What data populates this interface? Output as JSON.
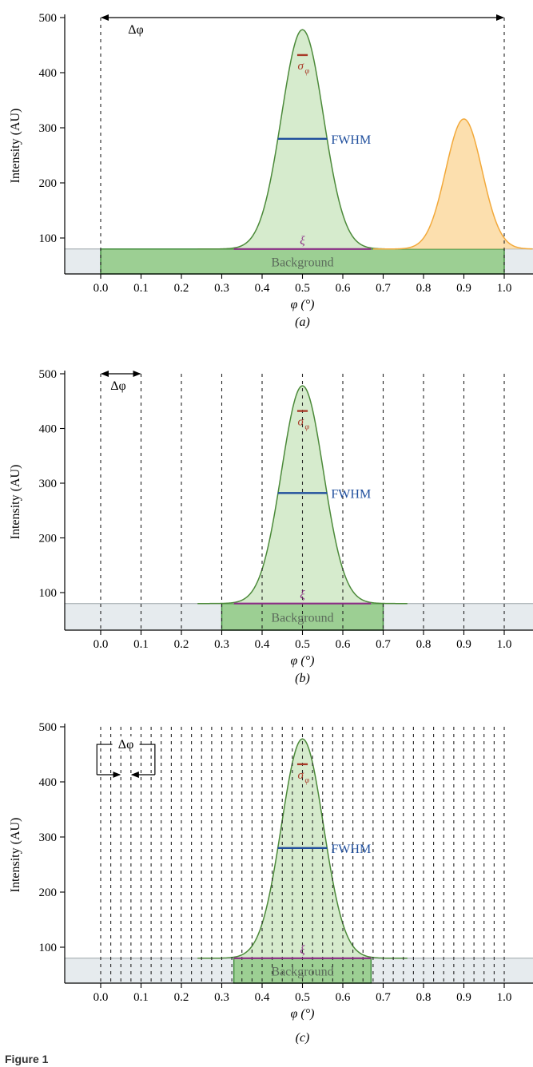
{
  "figure_label": "Figure 1",
  "chart_data": [
    {
      "type": "area",
      "panel_label": "(a)",
      "xlabel": "φ (°)",
      "ylabel": "Intensity (AU)",
      "xlim": [
        -0.08,
        1.07
      ],
      "ylim": [
        0,
        500
      ],
      "x_ticks": [
        "0.0",
        "0.1",
        "0.2",
        "0.3",
        "0.4",
        "0.5",
        "0.6",
        "0.7",
        "0.8",
        "0.9",
        "1.0"
      ],
      "y_ticks": [
        "100",
        "200",
        "300",
        "400",
        "500"
      ],
      "background_level": 80,
      "series": [
        {
          "center": 0.5,
          "peak": 478,
          "sigma": 0.052,
          "color": "#cfe7c4",
          "stroke": "#4c8a3a"
        },
        {
          "center": 0.9,
          "peak": 316,
          "sigma": 0.045,
          "color": "#fcd9a0",
          "stroke": "#f2a93b"
        }
      ],
      "background_box": [
        0.0,
        1.0
      ],
      "background_text": "Background",
      "oscillation_lines": [
        0.0,
        1.0
      ],
      "delta_range": [
        0.0,
        1.0
      ],
      "delta_label": "Δφ",
      "annotations": {
        "sigma": "σ",
        "sigma_sub": "φ",
        "fwhm": "FWHM",
        "xi": "ξ",
        "sigma_y": 432,
        "fwhm_y": 280,
        "xi_range": [
          0.33,
          0.67
        ]
      }
    },
    {
      "type": "area",
      "panel_label": "(b)",
      "xlabel": "φ (°)",
      "ylabel": "Intensity (AU)",
      "xlim": [
        -0.08,
        1.07
      ],
      "ylim": [
        0,
        500
      ],
      "x_ticks": [
        "0.0",
        "0.1",
        "0.2",
        "0.3",
        "0.4",
        "0.5",
        "0.6",
        "0.7",
        "0.8",
        "0.9",
        "1.0"
      ],
      "y_ticks": [
        "100",
        "200",
        "300",
        "400",
        "500"
      ],
      "background_level": 80,
      "series": [
        {
          "center": 0.5,
          "peak": 478,
          "sigma": 0.052,
          "color": "#cfe7c4",
          "stroke": "#4c8a3a"
        }
      ],
      "background_box": [
        0.3,
        0.7
      ],
      "background_text": "Background",
      "oscillation_lines": [
        0.0,
        0.1,
        0.2,
        0.3,
        0.4,
        0.5,
        0.6,
        0.7,
        0.8,
        0.9,
        1.0
      ],
      "delta_range": [
        0.0,
        0.1
      ],
      "delta_label": "Δφ",
      "annotations": {
        "sigma": "σ",
        "sigma_sub": "φ",
        "fwhm": "FWHM",
        "xi": "ξ",
        "sigma_y": 432,
        "fwhm_y": 282,
        "xi_range": [
          0.33,
          0.67
        ]
      }
    },
    {
      "type": "area",
      "panel_label": "(c)",
      "xlabel": "φ (°)",
      "ylabel": "Intensity (AU)",
      "xlim": [
        -0.08,
        1.07
      ],
      "ylim": [
        0,
        500
      ],
      "x_ticks": [
        "0.0",
        "0.1",
        "0.2",
        "0.3",
        "0.4",
        "0.5",
        "0.6",
        "0.7",
        "0.8",
        "0.9",
        "1.0"
      ],
      "y_ticks": [
        "100",
        "200",
        "300",
        "400",
        "500"
      ],
      "background_level": 80,
      "series": [
        {
          "center": 0.5,
          "peak": 478,
          "sigma": 0.052,
          "color": "#cfe7c4",
          "stroke": "#4c8a3a"
        }
      ],
      "background_box": [
        0.33,
        0.67
      ],
      "background_text": "Background",
      "oscillation_step": 0.025,
      "oscillation_range": [
        0.0,
        1.0
      ],
      "delta_range": [
        0.05,
        0.075
      ],
      "delta_label": "Δφ",
      "annotations": {
        "sigma": "σ",
        "sigma_sub": "φ",
        "fwhm": "FWHM",
        "xi": "ξ",
        "sigma_y": 432,
        "fwhm_y": 280,
        "xi_range": [
          0.33,
          0.67
        ]
      }
    }
  ]
}
